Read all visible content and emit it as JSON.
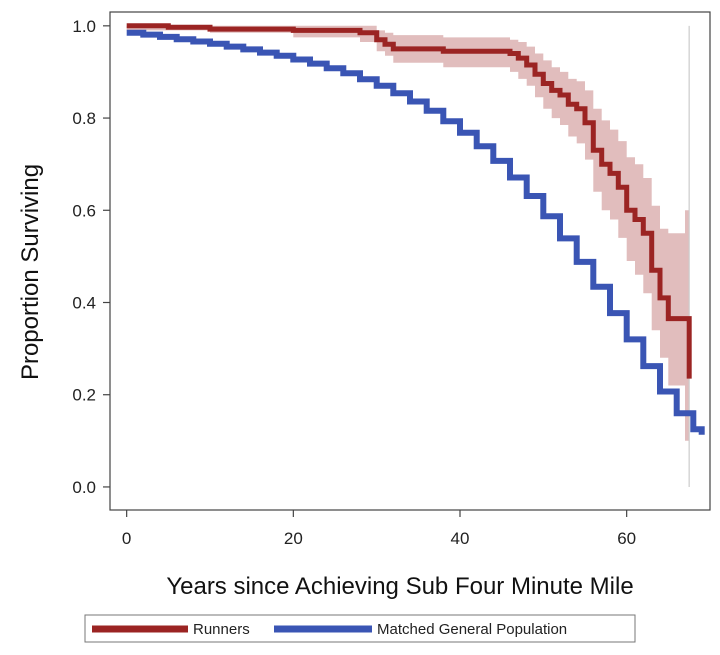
{
  "chart_data": {
    "type": "line",
    "title": "",
    "xlabel": "Years since Achieving Sub Four Minute Mile",
    "ylabel": "Proportion Surviving",
    "xlim": [
      -2,
      70
    ],
    "ylim": [
      -0.05,
      1.03
    ],
    "xticks": [
      0,
      20,
      40,
      60
    ],
    "yticks": [
      0.0,
      0.2,
      0.4,
      0.6,
      0.8,
      1.0
    ],
    "ytick_labels": [
      "0.0",
      "0.2",
      "0.4",
      "0.6",
      "0.8",
      "1.0"
    ],
    "grid": false,
    "legend_position": "bottom",
    "series": [
      {
        "name": "Runners",
        "color": "#9b2423",
        "style": "step",
        "x": [
          0,
          5,
          10,
          20,
          28,
          30,
          31,
          32,
          38,
          46,
          47,
          48,
          49,
          50,
          51,
          52,
          53,
          54,
          55,
          56,
          57,
          58,
          59,
          60,
          61,
          62,
          63,
          64,
          65,
          67,
          67.5
        ],
        "values": [
          1.0,
          0.997,
          0.993,
          0.99,
          0.985,
          0.97,
          0.96,
          0.95,
          0.945,
          0.94,
          0.93,
          0.915,
          0.895,
          0.875,
          0.86,
          0.85,
          0.83,
          0.82,
          0.79,
          0.73,
          0.7,
          0.68,
          0.65,
          0.6,
          0.58,
          0.55,
          0.47,
          0.41,
          0.365,
          0.365,
          0.235
        ],
        "ci_upper": [
          1.0,
          1.0,
          1.0,
          1.0,
          1.0,
          0.99,
          0.985,
          0.98,
          0.975,
          0.97,
          0.965,
          0.955,
          0.94,
          0.925,
          0.91,
          0.9,
          0.885,
          0.88,
          0.86,
          0.82,
          0.795,
          0.775,
          0.75,
          0.715,
          0.7,
          0.67,
          0.61,
          0.56,
          0.55,
          0.6,
          0.6
        ],
        "ci_lower": [
          0.99,
          0.99,
          0.985,
          0.975,
          0.965,
          0.945,
          0.935,
          0.92,
          0.91,
          0.9,
          0.885,
          0.87,
          0.845,
          0.82,
          0.8,
          0.785,
          0.76,
          0.745,
          0.71,
          0.64,
          0.6,
          0.58,
          0.54,
          0.49,
          0.46,
          0.42,
          0.34,
          0.28,
          0.22,
          0.1,
          0.1
        ]
      },
      {
        "name": "Matched General Population",
        "color": "#3a55b4",
        "style": "step",
        "x": [
          0,
          2,
          4,
          6,
          8,
          10,
          12,
          14,
          16,
          18,
          20,
          22,
          24,
          26,
          28,
          30,
          32,
          34,
          36,
          38,
          40,
          42,
          44,
          46,
          48,
          50,
          52,
          54,
          56,
          58,
          60,
          62,
          64,
          66,
          68,
          69
        ],
        "values": [
          0.985,
          0.981,
          0.976,
          0.971,
          0.966,
          0.961,
          0.955,
          0.949,
          0.942,
          0.935,
          0.927,
          0.918,
          0.908,
          0.897,
          0.884,
          0.87,
          0.854,
          0.836,
          0.816,
          0.793,
          0.768,
          0.739,
          0.707,
          0.671,
          0.631,
          0.587,
          0.539,
          0.488,
          0.434,
          0.377,
          0.32,
          0.262,
          0.207,
          0.16,
          0.125,
          0.113
        ]
      }
    ],
    "annotations": []
  }
}
